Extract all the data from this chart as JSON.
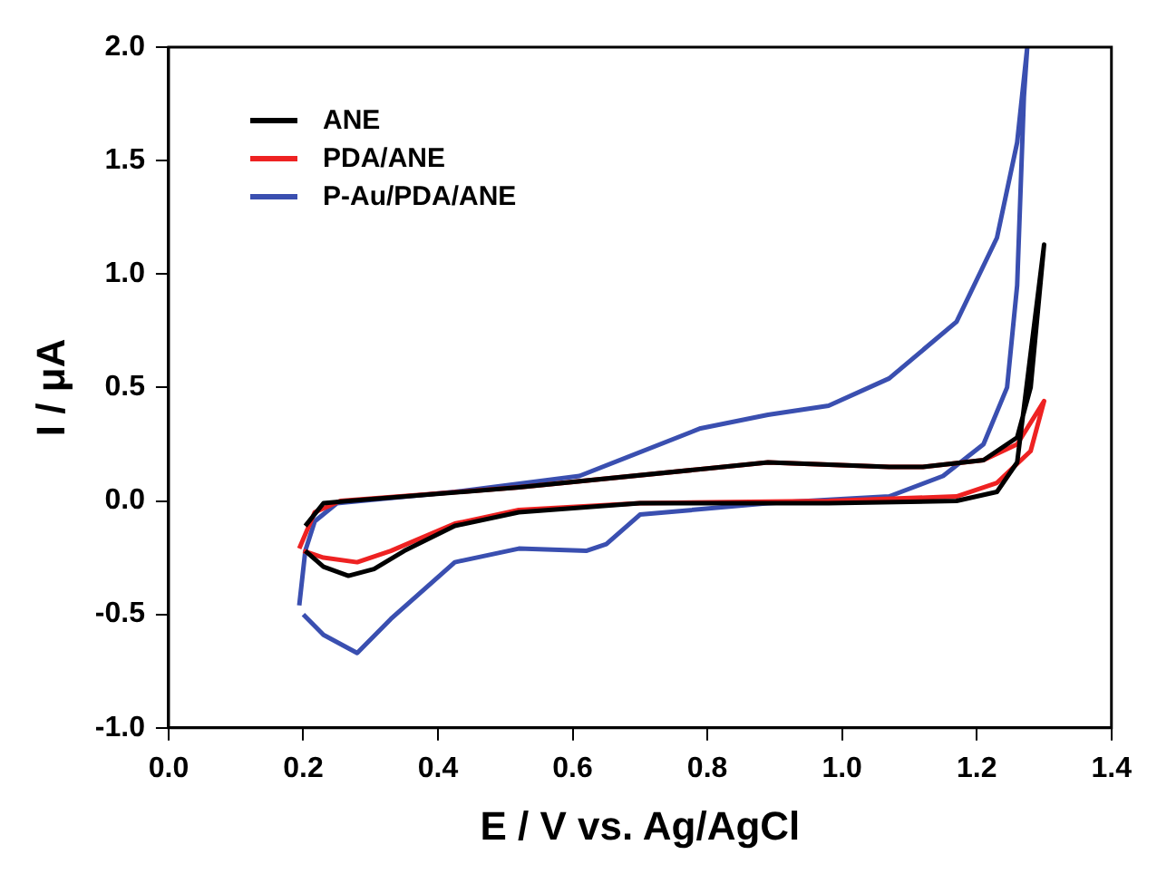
{
  "chart_data": {
    "type": "line",
    "xlabel": "E / V vs. Ag/AgCl",
    "ylabel": "I / μA",
    "xlim": [
      0,
      1.4
    ],
    "ylim": [
      -1,
      2
    ],
    "xticks": [
      {
        "value": 0,
        "label": "0.0"
      },
      {
        "value": 0.2,
        "label": "0.2"
      },
      {
        "value": 0.4,
        "label": "0.4"
      },
      {
        "value": 0.6,
        "label": "0.6"
      },
      {
        "value": 0.8,
        "label": "0.8"
      },
      {
        "value": 1,
        "label": "1.0"
      },
      {
        "value": 1.2,
        "label": "1.2"
      },
      {
        "value": 1.4,
        "label": "1.4"
      }
    ],
    "yticks": [
      {
        "value": -1,
        "label": "-1.0"
      },
      {
        "value": -0.5,
        "label": "-0.5"
      },
      {
        "value": 0,
        "label": "0.0"
      },
      {
        "value": 0.5,
        "label": "0.5"
      },
      {
        "value": 1,
        "label": "1.0"
      },
      {
        "value": 1.5,
        "label": "1.5"
      },
      {
        "value": 2,
        "label": "2.0"
      }
    ],
    "grid": false,
    "legend": "top left",
    "marker": "none",
    "line_style": "solid",
    "series": [
      {
        "name": "ANE",
        "color": "#000000",
        "x": [
          0.203,
          0.23,
          0.267,
          0.52,
          0.79,
          0.89,
          1.07,
          1.12,
          1.21,
          1.26,
          1.28,
          1.3,
          1.26,
          1.23,
          1.17,
          0.98,
          0.7,
          0.52,
          0.425,
          0.35,
          0.305,
          0.267,
          0.23,
          0.203
        ],
        "values": [
          -0.11,
          -0.01,
          0,
          0.06,
          0.14,
          0.17,
          0.15,
          0.15,
          0.18,
          0.28,
          0.5,
          1.13,
          0.17,
          0.04,
          0,
          -0.01,
          -0.01,
          -0.05,
          -0.11,
          -0.22,
          -0.3,
          -0.33,
          -0.29,
          -0.22
        ]
      },
      {
        "name": "PDA/ANE",
        "color": "#ee2222",
        "x": [
          0.194,
          0.217,
          0.255,
          0.52,
          0.79,
          0.89,
          1.07,
          1.12,
          1.21,
          1.26,
          1.3,
          1.28,
          1.23,
          1.17,
          0.98,
          0.7,
          0.52,
          0.425,
          0.33,
          0.28,
          0.23,
          0.2
        ],
        "values": [
          -0.21,
          -0.05,
          0,
          0.06,
          0.14,
          0.17,
          0.15,
          0.15,
          0.18,
          0.25,
          0.44,
          0.22,
          0.08,
          0.02,
          0,
          -0.01,
          -0.04,
          -0.1,
          -0.22,
          -0.27,
          -0.25,
          -0.22
        ]
      },
      {
        "name": "P-Au/PDA/ANE",
        "color": "#3a4fb0",
        "x": [
          0.194,
          0.203,
          0.217,
          0.25,
          0.425,
          0.61,
          0.79,
          0.89,
          0.98,
          1.07,
          1.17,
          1.23,
          1.26,
          1.275,
          1.27,
          1.26,
          1.245,
          1.21,
          1.15,
          1.07,
          0.89,
          0.7,
          0.65,
          0.62,
          0.52,
          0.425,
          0.33,
          0.28,
          0.23,
          0.2
        ],
        "values": [
          -0.46,
          -0.22,
          -0.09,
          -0.01,
          0.04,
          0.11,
          0.32,
          0.38,
          0.42,
          0.54,
          0.79,
          1.16,
          1.58,
          2,
          1.78,
          0.95,
          0.5,
          0.25,
          0.11,
          0.02,
          -0.01,
          -0.06,
          -0.19,
          -0.22,
          -0.21,
          -0.27,
          -0.52,
          -0.67,
          -0.59,
          -0.5
        ]
      }
    ]
  }
}
